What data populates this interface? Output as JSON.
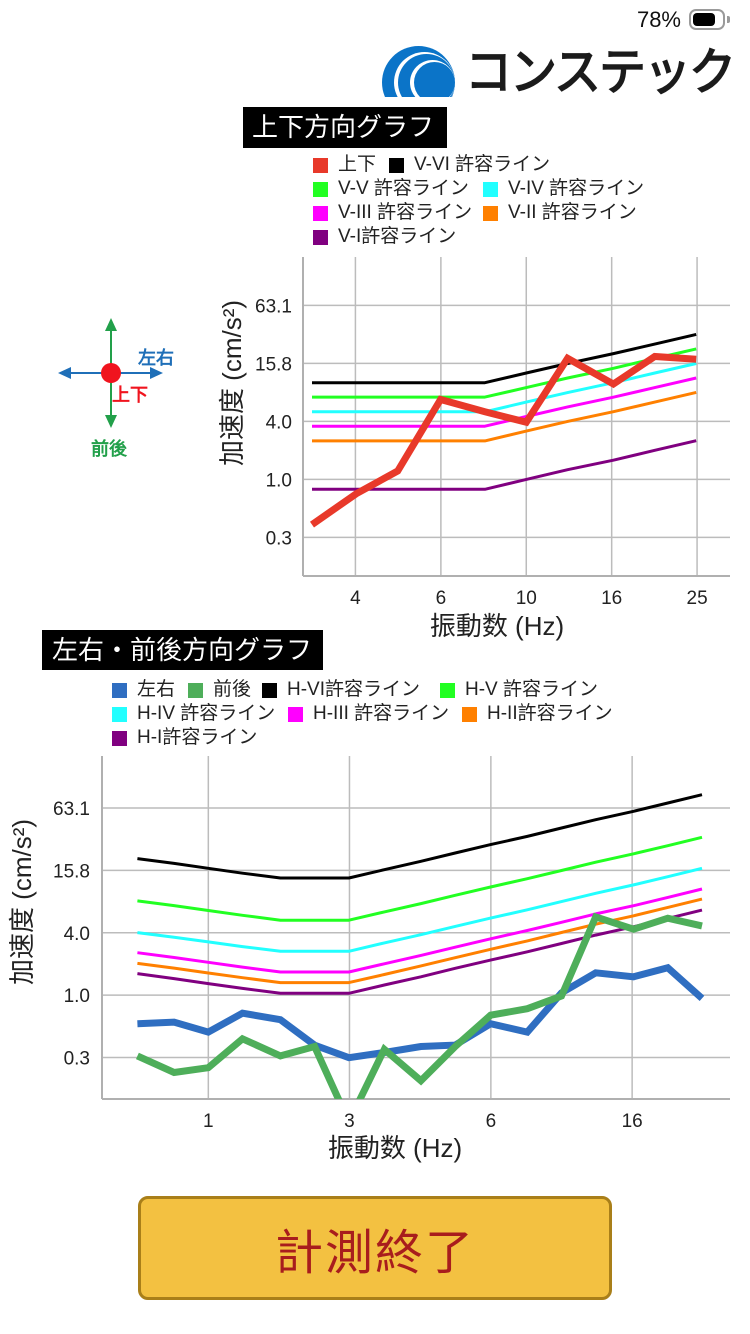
{
  "status_bar": {
    "battery_text": "78%",
    "battery_level": 0.78
  },
  "logo": {
    "text": "コンステック"
  },
  "theme": {
    "brand_blue": "#0B74C8",
    "left_right_color": "#1F6FB8",
    "front_back_color": "#22A04A",
    "up_down_color": "#F0141E",
    "button_bg": "#F3C141",
    "button_border": "#A97F19",
    "button_text": "#A81D1D"
  },
  "direction_diagram": {
    "left_right_label": "左右",
    "up_down_label": "上下",
    "front_back_label": "前後"
  },
  "chart_data": [
    {
      "type": "line",
      "title": "上下方向グラフ",
      "xlabel": "振動数 (Hz)",
      "ylabel": "加速度 (cm/s²)",
      "x_scale": "log",
      "y_scale": "log",
      "xlim": [
        3,
        30
      ],
      "ylim": [
        0.1,
        200
      ],
      "grid": true,
      "legend_position": "top",
      "x": [
        3.15,
        4,
        5,
        6.3,
        8,
        10,
        12.5,
        16,
        20,
        25
      ],
      "x_ticks": [
        {
          "value": 3.98,
          "label": "4"
        },
        {
          "value": 6.31,
          "label": "6"
        },
        {
          "value": 10,
          "label": "10"
        },
        {
          "value": 15.85,
          "label": "16"
        },
        {
          "value": 25.12,
          "label": "25"
        }
      ],
      "y_ticks": [
        {
          "value": 0.251,
          "label": "0.3"
        },
        {
          "value": 1,
          "label": "1.0"
        },
        {
          "value": 3.98,
          "label": "4.0"
        },
        {
          "value": 15.85,
          "label": "15.8"
        },
        {
          "value": 63.1,
          "label": "63.1"
        }
      ],
      "series": [
        {
          "name": "上下",
          "kind": "measured",
          "color": "#E8392A",
          "values": [
            0.34,
            0.71,
            1.22,
            6.7,
            5.0,
            3.9,
            17.9,
            9.7,
            18.7,
            17.5
          ]
        },
        {
          "name": "V-VI 許容ライン",
          "kind": "limit",
          "color": "#000000",
          "values": [
            10,
            10,
            10,
            10,
            10,
            12.6,
            15.8,
            20,
            25.1,
            31.6
          ]
        },
        {
          "name": "V-V 許容ライン",
          "kind": "limit",
          "color": "#22FF22",
          "values": [
            7.1,
            7.1,
            7.1,
            7.1,
            7.1,
            8.9,
            11.2,
            14.1,
            17.8,
            22.4
          ]
        },
        {
          "name": "V-IV 許容ライン",
          "kind": "limit",
          "color": "#22FFFF",
          "values": [
            5.0,
            5.0,
            5.0,
            5.0,
            5.0,
            6.3,
            7.9,
            10.0,
            12.6,
            15.8
          ]
        },
        {
          "name": "V-III 許容ライン",
          "kind": "limit",
          "color": "#FF00FF",
          "values": [
            3.55,
            3.55,
            3.55,
            3.55,
            3.55,
            4.47,
            5.62,
            7.08,
            8.91,
            11.2
          ]
        },
        {
          "name": "V-II 許容ライン",
          "kind": "limit",
          "color": "#FF8000",
          "values": [
            2.5,
            2.5,
            2.5,
            2.5,
            2.5,
            3.16,
            3.98,
            5.01,
            6.31,
            7.94
          ]
        },
        {
          "name": "V-I許容ライン",
          "kind": "limit",
          "color": "#800080",
          "values": [
            0.79,
            0.79,
            0.79,
            0.79,
            0.79,
            1.0,
            1.26,
            1.58,
            2.0,
            2.51
          ]
        }
      ]
    },
    {
      "type": "line",
      "title": "左右・前後方向グラフ",
      "xlabel": "振動数 (Hz)",
      "ylabel": "加速度 (cm/s²)",
      "x_scale": "log",
      "y_scale": "log",
      "xlim": [
        0.5,
        30
      ],
      "ylim": [
        0.1,
        200
      ],
      "grid": true,
      "legend_position": "top",
      "x": [
        0.63,
        0.8,
        1,
        1.25,
        1.6,
        2,
        2.5,
        3.15,
        4,
        5,
        6.3,
        8,
        10,
        12.5,
        16,
        20,
        25
      ],
      "x_ticks": [
        {
          "value": 1,
          "label": "1"
        },
        {
          "value": 2.51,
          "label": "3"
        },
        {
          "value": 6.31,
          "label": "6"
        },
        {
          "value": 15.85,
          "label": "16"
        }
      ],
      "y_ticks": [
        {
          "value": 0.251,
          "label": "0.3"
        },
        {
          "value": 1,
          "label": "1.0"
        },
        {
          "value": 3.98,
          "label": "4.0"
        },
        {
          "value": 15.85,
          "label": "15.8"
        },
        {
          "value": 63.1,
          "label": "63.1"
        }
      ],
      "series": [
        {
          "name": "左右",
          "kind": "measured",
          "color": "#2F6EC1",
          "values": [
            0.53,
            0.55,
            0.44,
            0.67,
            0.58,
            0.33,
            0.25,
            0.28,
            0.32,
            0.33,
            0.53,
            0.44,
            1.05,
            1.64,
            1.5,
            1.83,
            0.93
          ]
        },
        {
          "name": "前後",
          "kind": "measured",
          "color": "#4EAE5A",
          "values": [
            0.26,
            0.18,
            0.2,
            0.38,
            0.26,
            0.32,
            0.06,
            0.3,
            0.15,
            0.32,
            0.64,
            0.74,
            0.98,
            5.66,
            4.31,
            5.5,
            4.63
          ]
        },
        {
          "name": "H-VI許容ライン",
          "kind": "limit",
          "color": "#000000",
          "values": [
            20.6,
            18.5,
            16.6,
            14.9,
            13.4,
            13.4,
            13.4,
            16.1,
            19.4,
            23.3,
            28.1,
            33.7,
            40.6,
            48.8,
            58.7,
            70.6,
            84.9
          ]
        },
        {
          "name": "H-V 許容ライン",
          "kind": "limit",
          "color": "#22FF22",
          "values": [
            8.07,
            7.26,
            6.52,
            5.86,
            5.26,
            5.26,
            5.26,
            6.32,
            7.59,
            9.12,
            10.96,
            13.2,
            15.8,
            19.0,
            22.9,
            27.4,
            33.0
          ]
        },
        {
          "name": "H-IV 許容ライン",
          "kind": "limit",
          "color": "#22FFFF",
          "values": [
            3.99,
            3.6,
            3.25,
            2.93,
            2.64,
            2.64,
            2.64,
            3.18,
            3.81,
            4.58,
            5.51,
            6.62,
            7.94,
            9.55,
            11.5,
            13.8,
            16.6
          ]
        },
        {
          "name": "H-III 許容ライン",
          "kind": "limit",
          "color": "#FF00FF",
          "values": [
            2.56,
            2.3,
            2.07,
            1.86,
            1.67,
            1.67,
            1.67,
            2.0,
            2.41,
            2.89,
            3.48,
            4.18,
            5.02,
            6.04,
            7.25,
            8.71,
            10.5
          ]
        },
        {
          "name": "H-II許容ライン",
          "kind": "limit",
          "color": "#FF8000",
          "values": [
            2.02,
            1.82,
            1.63,
            1.47,
            1.32,
            1.32,
            1.32,
            1.58,
            1.91,
            2.29,
            2.76,
            3.32,
            4.0,
            4.81,
            5.79,
            6.98,
            8.39
          ]
        },
        {
          "name": "H-I許容ライン",
          "kind": "limit",
          "color": "#800080",
          "values": [
            1.61,
            1.44,
            1.29,
            1.16,
            1.04,
            1.04,
            1.04,
            1.25,
            1.5,
            1.81,
            2.17,
            2.61,
            3.14,
            3.78,
            4.55,
            5.47,
            6.58
          ]
        }
      ]
    }
  ],
  "button": {
    "label": "計測終了"
  }
}
